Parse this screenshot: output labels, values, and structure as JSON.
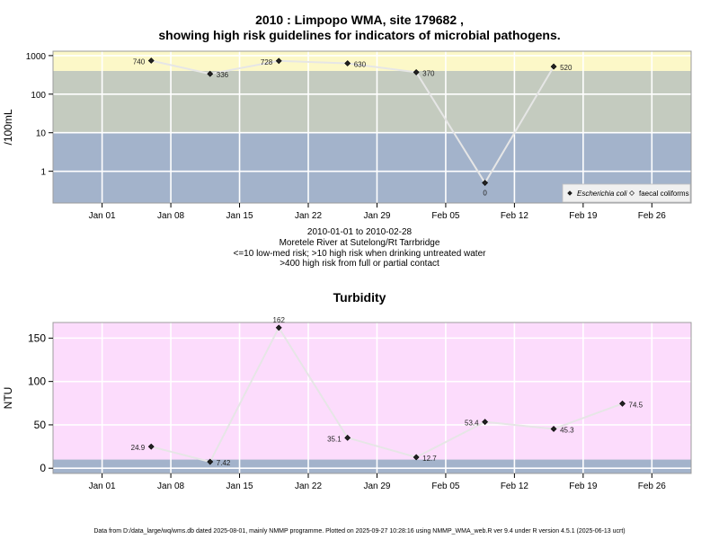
{
  "chart_data": [
    {
      "type": "scatter",
      "title_line1": "2010 : Limpopo WMA, site 179682 ,",
      "title_line2": "showing high risk guidelines for indicators of microbial pathogens.",
      "ylabel": "/100mL",
      "yscale": "log",
      "ylim": [
        0.15,
        1300
      ],
      "yticks": [
        1,
        10,
        100,
        1000
      ],
      "ytick_labels": [
        "1",
        "10",
        "100",
        "1000"
      ],
      "x_date_range": [
        "2009-12-27",
        "2010-03-02"
      ],
      "xticks": [
        "2010-01-01",
        "2010-01-08",
        "2010-01-15",
        "2010-01-22",
        "2010-01-29",
        "2010-02-05",
        "2010-02-12",
        "2010-02-19",
        "2010-02-26"
      ],
      "xtick_labels": [
        "Jan 01",
        "Jan 08",
        "Jan 15",
        "Jan 22",
        "Jan 29",
        "Feb 05",
        "Feb 12",
        "Feb 19",
        "Feb 26"
      ],
      "bands": [
        {
          "from": 0.15,
          "to": 10,
          "color": "#a3b3cb"
        },
        {
          "from": 10,
          "to": 400,
          "color": "#c4cbbf"
        },
        {
          "from": 400,
          "to": 1300,
          "color": "#fcf8c8"
        }
      ],
      "grid": true,
      "legend_position": "bottom-right",
      "series": [
        {
          "name": "Escherichia coli",
          "marker": "filled-diamond",
          "x": [
            "2010-01-06",
            "2010-01-12",
            "2010-01-19",
            "2010-01-26",
            "2010-02-02",
            "2010-02-09",
            "2010-02-16"
          ],
          "values": [
            740,
            336,
            728,
            630,
            370,
            0,
            520
          ],
          "labels": [
            "740",
            "336",
            "728",
            "630",
            "370",
            "0",
            "520"
          ],
          "label_side": [
            "left",
            "right",
            "left",
            "right",
            "right",
            "below",
            "right"
          ]
        },
        {
          "name": "faecal coliforms",
          "marker": "open-diamond",
          "x": [],
          "values": []
        }
      ],
      "notes": [
        "2010-01-01 to 2010-02-28",
        "Moretele River at Sutelong/Rt Tarrbridge",
        "<=10 low-med risk; >10 high risk when drinking untreated water",
        ">400 high risk from full or partial contact"
      ]
    },
    {
      "type": "scatter",
      "title": "Turbidity",
      "ylabel": "NTU",
      "ylim": [
        -6,
        168
      ],
      "yticks": [
        0,
        50,
        100,
        150
      ],
      "ytick_labels": [
        "0",
        "50",
        "100",
        "150"
      ],
      "x_date_range": [
        "2009-12-27",
        "2010-03-02"
      ],
      "xticks": [
        "2010-01-01",
        "2010-01-08",
        "2010-01-15",
        "2010-01-22",
        "2010-01-29",
        "2010-02-05",
        "2010-02-12",
        "2010-02-19",
        "2010-02-26"
      ],
      "xtick_labels": [
        "Jan 01",
        "Jan 08",
        "Jan 15",
        "Jan 22",
        "Jan 29",
        "Feb 05",
        "Feb 12",
        "Feb 19",
        "Feb 26"
      ],
      "bands": [
        {
          "from": -6,
          "to": 10,
          "color": "#a3b3cb"
        },
        {
          "from": 10,
          "to": 168,
          "color": "#fcdcfc"
        }
      ],
      "grid": true,
      "series": [
        {
          "marker": "filled-diamond",
          "x": [
            "2010-01-06",
            "2010-01-12",
            "2010-01-19",
            "2010-01-26",
            "2010-02-02",
            "2010-02-09",
            "2010-02-16",
            "2010-02-23"
          ],
          "values": [
            24.9,
            7.42,
            162,
            35.1,
            12.7,
            53.4,
            45.3,
            74.5
          ],
          "labels": [
            "24.9",
            "7.42",
            "162",
            "35.1",
            "12.7",
            "53.4",
            "45.3",
            "74.5"
          ],
          "label_side": [
            "left",
            "right",
            "above",
            "left",
            "right",
            "left",
            "right",
            "right"
          ]
        }
      ]
    }
  ],
  "footer": "Data from D:/data_large/wq/wms.db dated 2025-08-01, mainly NMMP programme. Plotted on 2025-09-27 10:28:16 using NMMP_WMA_web.R ver 9.4 under R version 4.5.1 (2025-06-13 ucrt)"
}
